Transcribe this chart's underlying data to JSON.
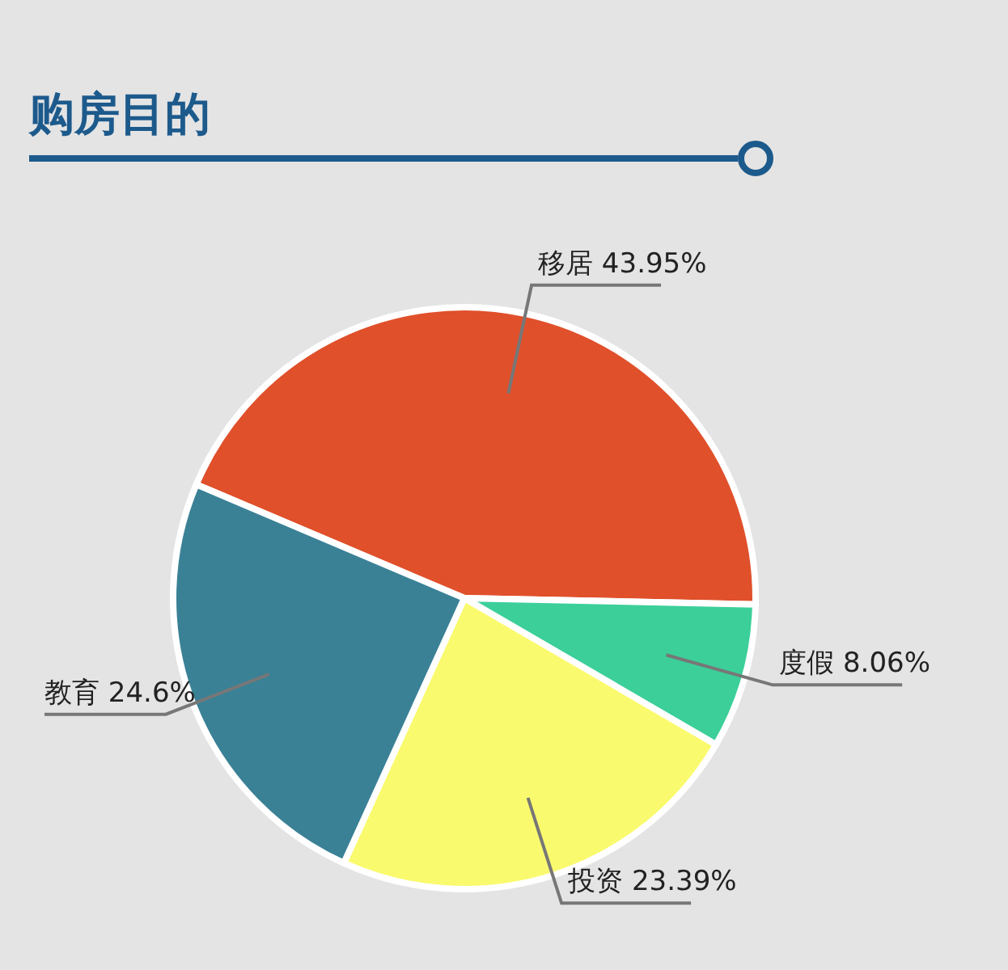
{
  "chart_data": {
    "type": "pie",
    "title": "购房目的",
    "categories": [
      "移居",
      "度假",
      "投资",
      "教育"
    ],
    "values": [
      43.95,
      8.06,
      23.39,
      24.6
    ],
    "value_labels": [
      "43.95%",
      "8.06%",
      "23.39%",
      "24.6%"
    ],
    "colors": [
      "#e0502b",
      "#3ccf9a",
      "#fafa6e",
      "#3a8196"
    ]
  }
}
